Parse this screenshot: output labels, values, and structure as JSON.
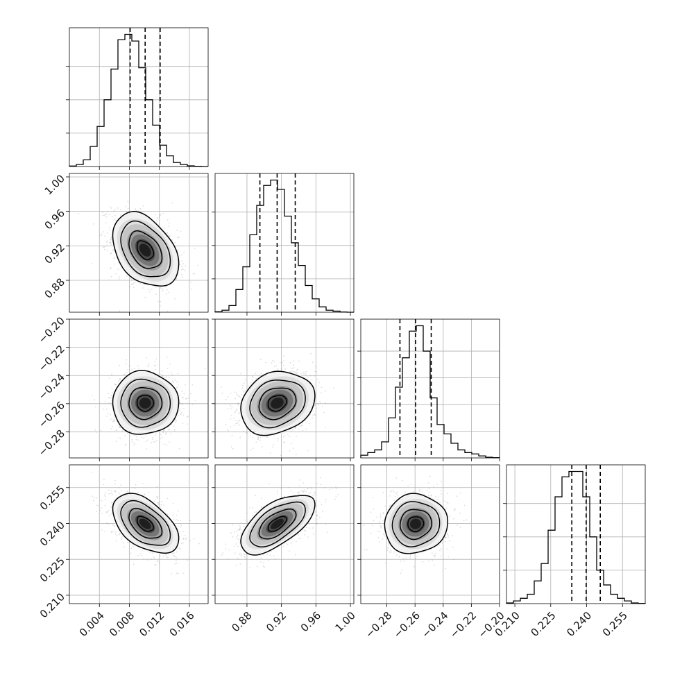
{
  "chart_data": {
    "type": "corner",
    "parameters": [
      {
        "axis_range": [
          0.0,
          0.0185
        ],
        "ticks": [
          0.004,
          0.008,
          0.012,
          0.016
        ],
        "tick_labels": [
          "0.004",
          "0.008",
          "0.012",
          "0.016"
        ],
        "quantiles": [
          0.0081,
          0.0101,
          0.0121
        ],
        "hist_counts": [
          0.4,
          1.5,
          5,
          15,
          30,
          50,
          73,
          95,
          99,
          94,
          74,
          50,
          31,
          16,
          8,
          3,
          1.5,
          0.5,
          0.2,
          0
        ],
        "hist_ticks": [
          25,
          50,
          75
        ]
      },
      {
        "axis_range": [
          0.843,
          1.004
        ],
        "ticks": [
          0.88,
          0.92,
          0.96,
          1.0
        ],
        "tick_labels": [
          "0.88",
          "0.92",
          "0.96",
          "1.00"
        ],
        "quantiles": [
          0.895,
          0.915,
          0.936
        ],
        "hist_counts": [
          0.4,
          1.5,
          5,
          17,
          34,
          58,
          80,
          95,
          99,
          92,
          72,
          52,
          35,
          20,
          10,
          4,
          1.5,
          0.8,
          0.2,
          0
        ],
        "hist_ticks": [
          25,
          50,
          75
        ]
      },
      {
        "axis_range": [
          -0.2985,
          -0.2
        ],
        "ticks": [
          -0.28,
          -0.26,
          -0.24,
          -0.22,
          -0.2
        ],
        "tick_labels": [
          "−0.28",
          "−0.26",
          "−0.24",
          "−0.22",
          "−0.20"
        ],
        "quantiles": [
          -0.2707,
          -0.2596,
          -0.2485
        ],
        "hist_counts": [
          2,
          4,
          6,
          12,
          30,
          53,
          75,
          95,
          99,
          80,
          45,
          25,
          18,
          11,
          6,
          4,
          3,
          1.5,
          0.5,
          0.2
        ],
        "hist_ticks": [
          20,
          40,
          60,
          80
        ]
      },
      {
        "axis_range": [
          0.2065,
          0.2645
        ],
        "ticks": [
          0.21,
          0.225,
          0.24,
          0.255
        ],
        "tick_labels": [
          "0.210",
          "0.225",
          "0.240",
          "0.255"
        ],
        "quantiles": [
          0.2338,
          0.2398,
          0.2457
        ],
        "hist_counts": [
          0.5,
          2,
          4,
          7,
          17,
          30,
          55,
          80,
          95,
          99,
          99,
          80,
          50,
          25,
          14,
          7,
          4,
          2,
          0.5,
          0.2
        ],
        "hist_ticks": [
          25,
          50,
          75
        ]
      }
    ],
    "pairs": [
      {
        "x": 0,
        "y": 1,
        "center": [
          0.0101,
          0.915
        ],
        "sigma": [
          0.0022,
          0.0215
        ],
        "rho": -0.38
      },
      {
        "x": 0,
        "y": 2,
        "center": [
          0.0101,
          -0.2596
        ],
        "sigma": [
          0.0022,
          0.0112
        ],
        "rho": 0.0
      },
      {
        "x": 1,
        "y": 2,
        "center": [
          0.915,
          -0.2596
        ],
        "sigma": [
          0.0215,
          0.0112
        ],
        "rho": 0.2
      },
      {
        "x": 0,
        "y": 3,
        "center": [
          0.0101,
          0.2398
        ],
        "sigma": [
          0.0022,
          0.0062
        ],
        "rho": -0.5
      },
      {
        "x": 1,
        "y": 3,
        "center": [
          0.915,
          0.2398
        ],
        "sigma": [
          0.0215,
          0.0062
        ],
        "rho": 0.62
      },
      {
        "x": 2,
        "y": 3,
        "center": [
          -0.2596,
          0.2398
        ],
        "sigma": [
          0.0112,
          0.0062
        ],
        "rho": 0.05
      }
    ],
    "contour_levels_sigma": [
      0.5,
      1.0,
      1.5,
      2.0
    ],
    "grid": true,
    "title": "",
    "xlabel": "",
    "ylabel": "",
    "colors": {
      "line": "#000000",
      "scatter": "#9a9a9a",
      "grid": "#b0b0b0"
    }
  }
}
